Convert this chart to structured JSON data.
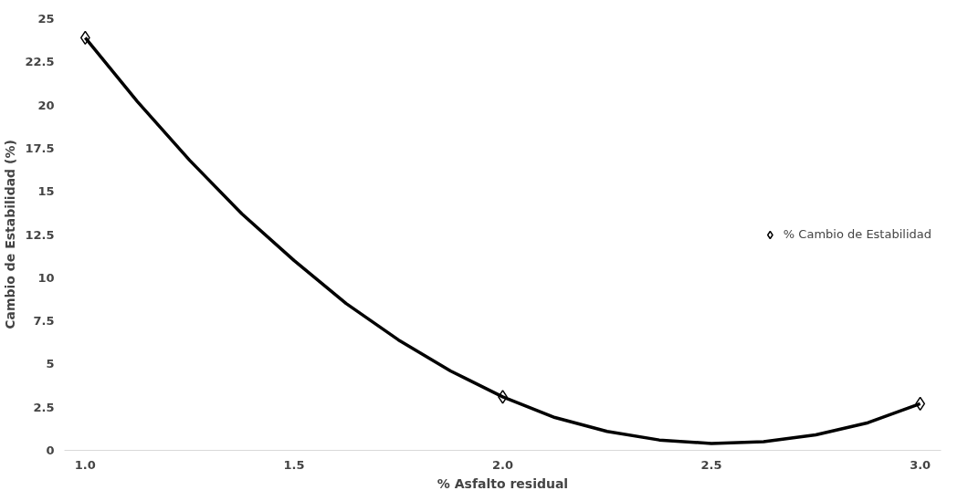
{
  "chart_data": {
    "type": "scatter",
    "xlabel": "% Asfalto residual",
    "ylabel": "Cambio de Estabilidad (%)",
    "x": [
      1.0,
      2.0,
      3.0
    ],
    "series": [
      {
        "name": "% Cambio de Estabilidad",
        "color": "#000000",
        "values": [
          23.9,
          3.1,
          2.7
        ],
        "marker": "diamond"
      },
      {
        "type": "line",
        "color": "#000000",
        "x": [
          1.0,
          1.125,
          1.25,
          1.375,
          1.5,
          1.625,
          1.75,
          1.875,
          2.0,
          2.125,
          2.25,
          2.375,
          2.5,
          2.625,
          2.75,
          2.875,
          3.0
        ],
        "values": [
          23.9,
          20.2,
          16.8,
          13.7,
          11.0,
          8.5,
          6.4,
          4.6,
          3.1,
          1.9,
          1.1,
          0.6,
          0.4,
          0.5,
          0.9,
          1.6,
          2.7
        ]
      }
    ],
    "xlim": [
      0.95,
      3.05
    ],
    "xticks": [
      {
        "value": 1,
        "label": "1.0"
      },
      1.5,
      {
        "value": 2,
        "label": "2.0"
      },
      2.5,
      {
        "value": 3,
        "label": "3.0"
      }
    ],
    "ylim": [
      0,
      25
    ],
    "yticks": [
      0,
      2.5,
      5,
      7.5,
      10,
      12.5,
      15,
      17.5,
      20,
      22.5,
      25
    ],
    "legend": "right"
  }
}
